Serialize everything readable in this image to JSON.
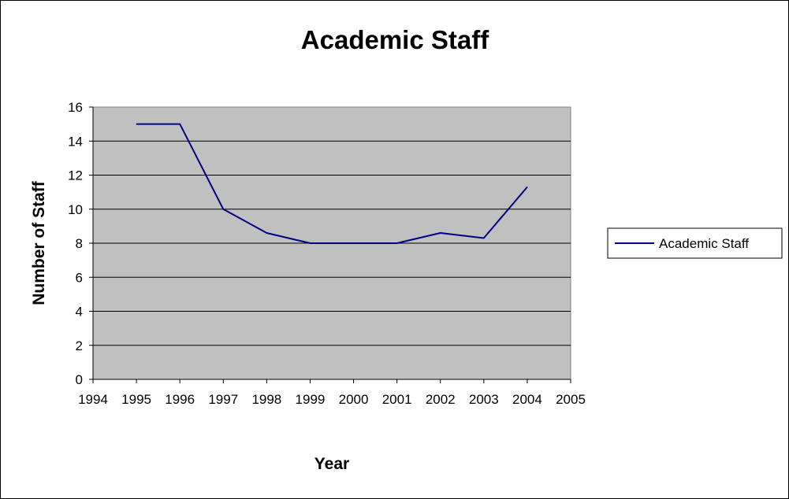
{
  "chart_data": {
    "type": "line",
    "title": "Academic Staff",
    "xlabel": "Year",
    "ylabel": "Number of Staff",
    "xlim": [
      1994,
      2005
    ],
    "ylim": [
      0,
      16
    ],
    "x_ticks": [
      "1994",
      "1995",
      "1996",
      "1997",
      "1998",
      "1999",
      "2000",
      "2001",
      "2002",
      "2003",
      "2004",
      "2005"
    ],
    "y_ticks": [
      "0",
      "2",
      "4",
      "6",
      "8",
      "10",
      "12",
      "14",
      "16"
    ],
    "grid": true,
    "legend": "right",
    "plot_background": "#c0c0c0",
    "series": [
      {
        "name": "Academic Staff",
        "color": "#000080",
        "x": [
          1995,
          1996,
          1997,
          1998,
          1999,
          2000,
          2001,
          2002,
          2003,
          2004
        ],
        "values": [
          15,
          15,
          10,
          8.6,
          8,
          8,
          8,
          8.6,
          8.3,
          11.3
        ]
      }
    ]
  }
}
